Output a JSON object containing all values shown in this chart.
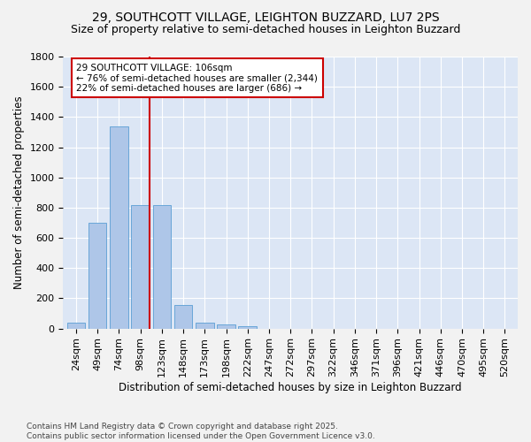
{
  "title": "29, SOUTHCOTT VILLAGE, LEIGHTON BUZZARD, LU7 2PS",
  "subtitle": "Size of property relative to semi-detached houses in Leighton Buzzard",
  "xlabel": "Distribution of semi-detached houses by size in Leighton Buzzard",
  "ylabel": "Number of semi-detached properties",
  "categories": [
    "24sqm",
    "49sqm",
    "74sqm",
    "98sqm",
    "123sqm",
    "148sqm",
    "173sqm",
    "198sqm",
    "222sqm",
    "247sqm",
    "272sqm",
    "297sqm",
    "322sqm",
    "346sqm",
    "371sqm",
    "396sqm",
    "421sqm",
    "446sqm",
    "470sqm",
    "495sqm",
    "520sqm"
  ],
  "values": [
    40,
    700,
    1340,
    815,
    815,
    155,
    40,
    25,
    15,
    0,
    0,
    0,
    0,
    0,
    0,
    0,
    0,
    0,
    0,
    0,
    0
  ],
  "bar_color": "#aec6e8",
  "bar_edge_color": "#5a9fd4",
  "vline_x": 3.42,
  "vline_color": "#cc0000",
  "annotation_line1": "29 SOUTHCOTT VILLAGE: 106sqm",
  "annotation_line2": "← 76% of semi-detached houses are smaller (2,344)",
  "annotation_line3": "22% of semi-detached houses are larger (686) →",
  "annotation_border_color": "#cc0000",
  "plot_bg_color": "#dce6f5",
  "fig_bg_color": "#f2f2f2",
  "grid_color": "#ffffff",
  "ylim": [
    0,
    1800
  ],
  "yticks": [
    0,
    200,
    400,
    600,
    800,
    1000,
    1200,
    1400,
    1600,
    1800
  ],
  "footer": "Contains HM Land Registry data © Crown copyright and database right 2025.\nContains public sector information licensed under the Open Government Licence v3.0.",
  "title_fontsize": 10,
  "subtitle_fontsize": 9,
  "xlabel_fontsize": 8.5,
  "ylabel_fontsize": 8.5,
  "tick_fontsize": 8,
  "footer_fontsize": 6.5,
  "annotation_fontsize": 7.5
}
